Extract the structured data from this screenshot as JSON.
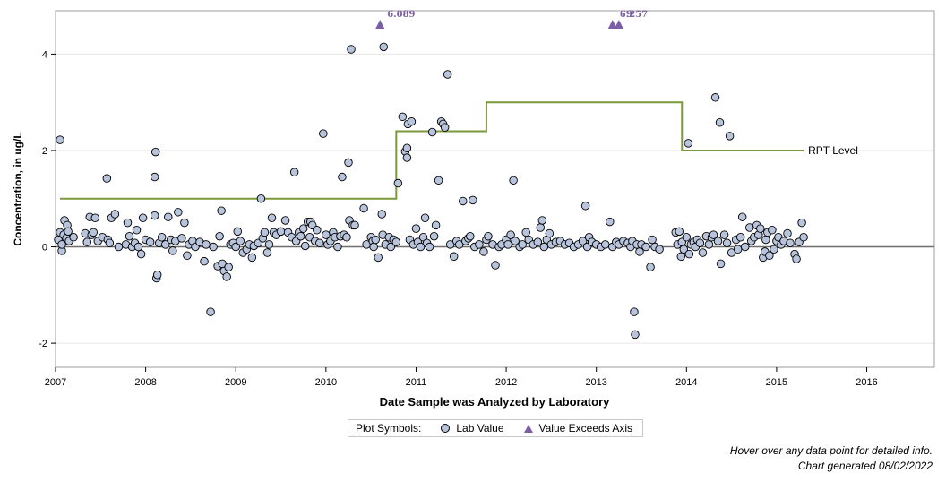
{
  "chart_data": {
    "type": "scatter",
    "title": "",
    "xlabel": "Date Sample was Analyzed by Laboratory",
    "ylabel": "Concentration, in ug/L",
    "xlim": [
      2007,
      2016.75
    ],
    "ylim": [
      -2.5,
      4.9
    ],
    "x_ticks": [
      "2007",
      "2008",
      "2009",
      "2010",
      "2011",
      "2012",
      "2013",
      "2014",
      "2015",
      "2016"
    ],
    "y_ticks": [
      "-2",
      "0",
      "2",
      "4"
    ],
    "grid": true,
    "reference_line": {
      "label": "RPT Level",
      "steps": [
        {
          "x": 2007.05,
          "y": 1.0
        },
        {
          "x": 2010.78,
          "y": 1.0
        },
        {
          "x": 2010.78,
          "y": 2.4
        },
        {
          "x": 2011.78,
          "y": 2.4
        },
        {
          "x": 2011.78,
          "y": 3.0
        },
        {
          "x": 2013.95,
          "y": 3.0
        },
        {
          "x": 2013.95,
          "y": 2.0
        },
        {
          "x": 2015.3,
          "y": 2.0
        }
      ]
    },
    "exceeds_axis": [
      {
        "x": 2010.6,
        "value_label": "6.089"
      },
      {
        "x": 2013.18,
        "value_label": "6.257"
      },
      {
        "x": 2013.25,
        "value_label": "9"
      }
    ],
    "points": [
      [
        2007.05,
        2.22
      ],
      [
        2007.03,
        0.15
      ],
      [
        2007.05,
        0.3
      ],
      [
        2007.07,
        -0.08
      ],
      [
        2007.07,
        0.05
      ],
      [
        2007.09,
        0.25
      ],
      [
        2007.1,
        0.55
      ],
      [
        2007.12,
        0.18
      ],
      [
        2007.13,
        0.45
      ],
      [
        2007.14,
        0.32
      ],
      [
        2007.15,
        0.12
      ],
      [
        2007.2,
        0.2
      ],
      [
        2007.33,
        0.28
      ],
      [
        2007.35,
        0.1
      ],
      [
        2007.38,
        0.62
      ],
      [
        2007.4,
        0.25
      ],
      [
        2007.42,
        0.3
      ],
      [
        2007.44,
        0.6
      ],
      [
        2007.47,
        0.12
      ],
      [
        2007.52,
        0.2
      ],
      [
        2007.57,
        1.42
      ],
      [
        2007.58,
        0.15
      ],
      [
        2007.6,
        0.08
      ],
      [
        2007.62,
        0.6
      ],
      [
        2007.66,
        0.68
      ],
      [
        2007.7,
        0.0
      ],
      [
        2007.78,
        0.05
      ],
      [
        2007.8,
        0.5
      ],
      [
        2007.82,
        0.22
      ],
      [
        2007.85,
        0.0
      ],
      [
        2007.88,
        0.08
      ],
      [
        2007.9,
        0.35
      ],
      [
        2007.92,
        0.0
      ],
      [
        2007.95,
        -0.15
      ],
      [
        2007.97,
        0.6
      ],
      [
        2008.0,
        0.15
      ],
      [
        2008.05,
        0.1
      ],
      [
        2008.1,
        0.65
      ],
      [
        2008.11,
        1.97
      ],
      [
        2008.1,
        1.45
      ],
      [
        2008.12,
        -0.65
      ],
      [
        2008.13,
        -0.58
      ],
      [
        2008.15,
        0.08
      ],
      [
        2008.18,
        0.2
      ],
      [
        2008.22,
        0.05
      ],
      [
        2008.25,
        0.62
      ],
      [
        2008.28,
        0.15
      ],
      [
        2008.3,
        -0.08
      ],
      [
        2008.33,
        0.12
      ],
      [
        2008.36,
        0.72
      ],
      [
        2008.4,
        0.18
      ],
      [
        2008.43,
        0.5
      ],
      [
        2008.46,
        -0.18
      ],
      [
        2008.48,
        0.05
      ],
      [
        2008.52,
        0.12
      ],
      [
        2008.55,
        0.0
      ],
      [
        2008.6,
        0.1
      ],
      [
        2008.65,
        -0.3
      ],
      [
        2008.67,
        0.05
      ],
      [
        2008.72,
        -1.35
      ],
      [
        2008.75,
        0.0
      ],
      [
        2008.8,
        -0.4
      ],
      [
        2008.82,
        0.22
      ],
      [
        2008.84,
        0.75
      ],
      [
        2008.85,
        -0.35
      ],
      [
        2008.87,
        -0.5
      ],
      [
        2008.9,
        -0.62
      ],
      [
        2008.92,
        -0.42
      ],
      [
        2008.94,
        0.05
      ],
      [
        2008.97,
        0.08
      ],
      [
        2009.0,
        0.0
      ],
      [
        2009.02,
        0.32
      ],
      [
        2009.05,
        0.12
      ],
      [
        2009.08,
        -0.12
      ],
      [
        2009.12,
        -0.05
      ],
      [
        2009.15,
        0.05
      ],
      [
        2009.18,
        -0.22
      ],
      [
        2009.2,
        0.02
      ],
      [
        2009.25,
        0.08
      ],
      [
        2009.28,
        1.0
      ],
      [
        2009.3,
        0.18
      ],
      [
        2009.32,
        0.3
      ],
      [
        2009.35,
        -0.12
      ],
      [
        2009.37,
        0.05
      ],
      [
        2009.4,
        0.6
      ],
      [
        2009.42,
        0.3
      ],
      [
        2009.45,
        0.25
      ],
      [
        2009.5,
        0.32
      ],
      [
        2009.55,
        0.55
      ],
      [
        2009.58,
        0.3
      ],
      [
        2009.62,
        0.2
      ],
      [
        2009.65,
        1.55
      ],
      [
        2009.67,
        0.12
      ],
      [
        2009.7,
        0.3
      ],
      [
        2009.72,
        0.22
      ],
      [
        2009.75,
        0.38
      ],
      [
        2009.77,
        0.02
      ],
      [
        2009.8,
        0.52
      ],
      [
        2009.82,
        0.2
      ],
      [
        2009.83,
        0.52
      ],
      [
        2009.85,
        0.45
      ],
      [
        2009.88,
        0.12
      ],
      [
        2009.9,
        0.35
      ],
      [
        2009.93,
        0.08
      ],
      [
        2009.97,
        2.35
      ],
      [
        2010.0,
        0.25
      ],
      [
        2010.02,
        0.05
      ],
      [
        2010.05,
        0.12
      ],
      [
        2010.08,
        0.3
      ],
      [
        2010.1,
        0.2
      ],
      [
        2010.13,
        0.0
      ],
      [
        2010.16,
        0.22
      ],
      [
        2010.18,
        1.45
      ],
      [
        2010.2,
        0.25
      ],
      [
        2010.23,
        0.2
      ],
      [
        2010.25,
        1.75
      ],
      [
        2010.26,
        0.55
      ],
      [
        2010.28,
        4.1
      ],
      [
        2010.3,
        0.45
      ],
      [
        2010.32,
        0.45
      ],
      [
        2010.42,
        0.8
      ],
      [
        2010.45,
        0.05
      ],
      [
        2010.5,
        0.2
      ],
      [
        2010.52,
        0.12
      ],
      [
        2010.53,
        0.0
      ],
      [
        2010.55,
        0.15
      ],
      [
        2010.58,
        -0.22
      ],
      [
        2010.62,
        0.68
      ],
      [
        2010.63,
        0.25
      ],
      [
        2010.64,
        4.15
      ],
      [
        2010.66,
        0.05
      ],
      [
        2010.7,
        0.2
      ],
      [
        2010.72,
        0.0
      ],
      [
        2010.75,
        0.15
      ],
      [
        2010.78,
        0.1
      ],
      [
        2010.8,
        1.32
      ],
      [
        2010.85,
        2.7
      ],
      [
        2010.88,
        1.98
      ],
      [
        2010.9,
        1.85
      ],
      [
        2010.9,
        2.05
      ],
      [
        2010.91,
        2.55
      ],
      [
        2010.93,
        0.15
      ],
      [
        2010.95,
        2.6
      ],
      [
        2010.97,
        0.05
      ],
      [
        2011.0,
        0.38
      ],
      [
        2011.02,
        0.1
      ],
      [
        2011.05,
        0.0
      ],
      [
        2011.08,
        0.2
      ],
      [
        2011.1,
        0.6
      ],
      [
        2011.12,
        0.08
      ],
      [
        2011.15,
        0.0
      ],
      [
        2011.18,
        2.38
      ],
      [
        2011.2,
        0.22
      ],
      [
        2011.22,
        0.45
      ],
      [
        2011.25,
        1.38
      ],
      [
        2011.28,
        2.6
      ],
      [
        2011.3,
        2.55
      ],
      [
        2011.32,
        2.48
      ],
      [
        2011.35,
        3.58
      ],
      [
        2011.38,
        0.05
      ],
      [
        2011.42,
        -0.2
      ],
      [
        2011.45,
        0.12
      ],
      [
        2011.48,
        0.05
      ],
      [
        2011.52,
        0.95
      ],
      [
        2011.55,
        0.12
      ],
      [
        2011.58,
        0.18
      ],
      [
        2011.6,
        0.22
      ],
      [
        2011.63,
        0.97
      ],
      [
        2011.65,
        0.0
      ],
      [
        2011.7,
        0.05
      ],
      [
        2011.75,
        -0.1
      ],
      [
        2011.78,
        0.15
      ],
      [
        2011.8,
        0.22
      ],
      [
        2011.85,
        0.05
      ],
      [
        2011.88,
        -0.38
      ],
      [
        2011.92,
        0.0
      ],
      [
        2011.95,
        0.05
      ],
      [
        2012.0,
        0.15
      ],
      [
        2012.02,
        0.05
      ],
      [
        2012.05,
        0.25
      ],
      [
        2012.08,
        1.38
      ],
      [
        2012.1,
        0.12
      ],
      [
        2012.15,
        0.0
      ],
      [
        2012.18,
        0.05
      ],
      [
        2012.22,
        0.3
      ],
      [
        2012.25,
        0.15
      ],
      [
        2012.3,
        0.05
      ],
      [
        2012.35,
        0.1
      ],
      [
        2012.38,
        0.4
      ],
      [
        2012.4,
        0.55
      ],
      [
        2012.42,
        0.0
      ],
      [
        2012.45,
        0.15
      ],
      [
        2012.48,
        0.28
      ],
      [
        2012.5,
        0.05
      ],
      [
        2012.55,
        0.1
      ],
      [
        2012.6,
        0.12
      ],
      [
        2012.65,
        0.05
      ],
      [
        2012.7,
        0.08
      ],
      [
        2012.75,
        0.0
      ],
      [
        2012.8,
        0.05
      ],
      [
        2012.85,
        0.12
      ],
      [
        2012.88,
        0.85
      ],
      [
        2012.9,
        0.0
      ],
      [
        2012.92,
        0.2
      ],
      [
        2012.95,
        0.1
      ],
      [
        2013.0,
        0.05
      ],
      [
        2013.05,
        0.0
      ],
      [
        2013.1,
        0.05
      ],
      [
        2013.15,
        0.52
      ],
      [
        2013.18,
        0.0
      ],
      [
        2013.22,
        0.1
      ],
      [
        2013.25,
        0.05
      ],
      [
        2013.3,
        0.12
      ],
      [
        2013.35,
        0.08
      ],
      [
        2013.38,
        0.0
      ],
      [
        2013.4,
        0.12
      ],
      [
        2013.42,
        -1.35
      ],
      [
        2013.43,
        -1.82
      ],
      [
        2013.45,
        0.05
      ],
      [
        2013.48,
        -0.1
      ],
      [
        2013.5,
        0.05
      ],
      [
        2013.55,
        0.0
      ],
      [
        2013.6,
        -0.42
      ],
      [
        2013.62,
        0.15
      ],
      [
        2013.65,
        0.0
      ],
      [
        2013.7,
        -0.05
      ],
      [
        2013.88,
        0.3
      ],
      [
        2013.9,
        0.05
      ],
      [
        2013.92,
        0.32
      ],
      [
        2013.94,
        -0.2
      ],
      [
        2013.95,
        0.1
      ],
      [
        2013.97,
        -0.05
      ],
      [
        2014.0,
        0.2
      ],
      [
        2014.02,
        2.15
      ],
      [
        2014.03,
        -0.15
      ],
      [
        2014.05,
        0.05
      ],
      [
        2014.08,
        0.1
      ],
      [
        2014.1,
        0.0
      ],
      [
        2014.12,
        0.15
      ],
      [
        2014.15,
        0.08
      ],
      [
        2014.18,
        -0.12
      ],
      [
        2014.22,
        0.22
      ],
      [
        2014.25,
        0.05
      ],
      [
        2014.28,
        0.2
      ],
      [
        2014.3,
        0.25
      ],
      [
        2014.32,
        3.1
      ],
      [
        2014.35,
        0.12
      ],
      [
        2014.37,
        2.58
      ],
      [
        2014.38,
        -0.35
      ],
      [
        2014.42,
        0.25
      ],
      [
        2014.45,
        0.08
      ],
      [
        2014.48,
        2.3
      ],
      [
        2014.5,
        -0.12
      ],
      [
        2014.55,
        0.15
      ],
      [
        2014.57,
        -0.05
      ],
      [
        2014.6,
        0.2
      ],
      [
        2014.62,
        0.62
      ],
      [
        2014.65,
        0.0
      ],
      [
        2014.7,
        0.4
      ],
      [
        2014.72,
        0.12
      ],
      [
        2014.75,
        0.2
      ],
      [
        2014.78,
        0.45
      ],
      [
        2014.8,
        0.25
      ],
      [
        2014.82,
        0.38
      ],
      [
        2014.85,
        -0.22
      ],
      [
        2014.87,
        -0.1
      ],
      [
        2014.88,
        0.15
      ],
      [
        2014.9,
        0.3
      ],
      [
        2014.92,
        -0.18
      ],
      [
        2014.95,
        0.35
      ],
      [
        2014.97,
        -0.05
      ],
      [
        2015.0,
        0.12
      ],
      [
        2015.02,
        0.2
      ],
      [
        2015.05,
        0.05
      ],
      [
        2015.08,
        0.12
      ],
      [
        2015.12,
        0.28
      ],
      [
        2015.15,
        0.08
      ],
      [
        2015.2,
        -0.15
      ],
      [
        2015.22,
        -0.25
      ],
      [
        2015.25,
        0.1
      ],
      [
        2015.28,
        0.5
      ],
      [
        2015.3,
        0.2
      ]
    ]
  },
  "legend": {
    "title": "Plot Symbols:",
    "lab_value": "Lab Value",
    "exceeds_axis": "Value Exceeds Axis"
  },
  "footnotes": {
    "hover": "Hover over any data point for detailed info.",
    "generated": "Chart generated 08/02/2022"
  },
  "colors": {
    "point_fill": "#b8c4dc",
    "reference_line": "#7a9a3a",
    "exceed_marker": "#7b5ea7",
    "zero_line": "#6d6d6d",
    "grid": "#e6e6e6"
  }
}
